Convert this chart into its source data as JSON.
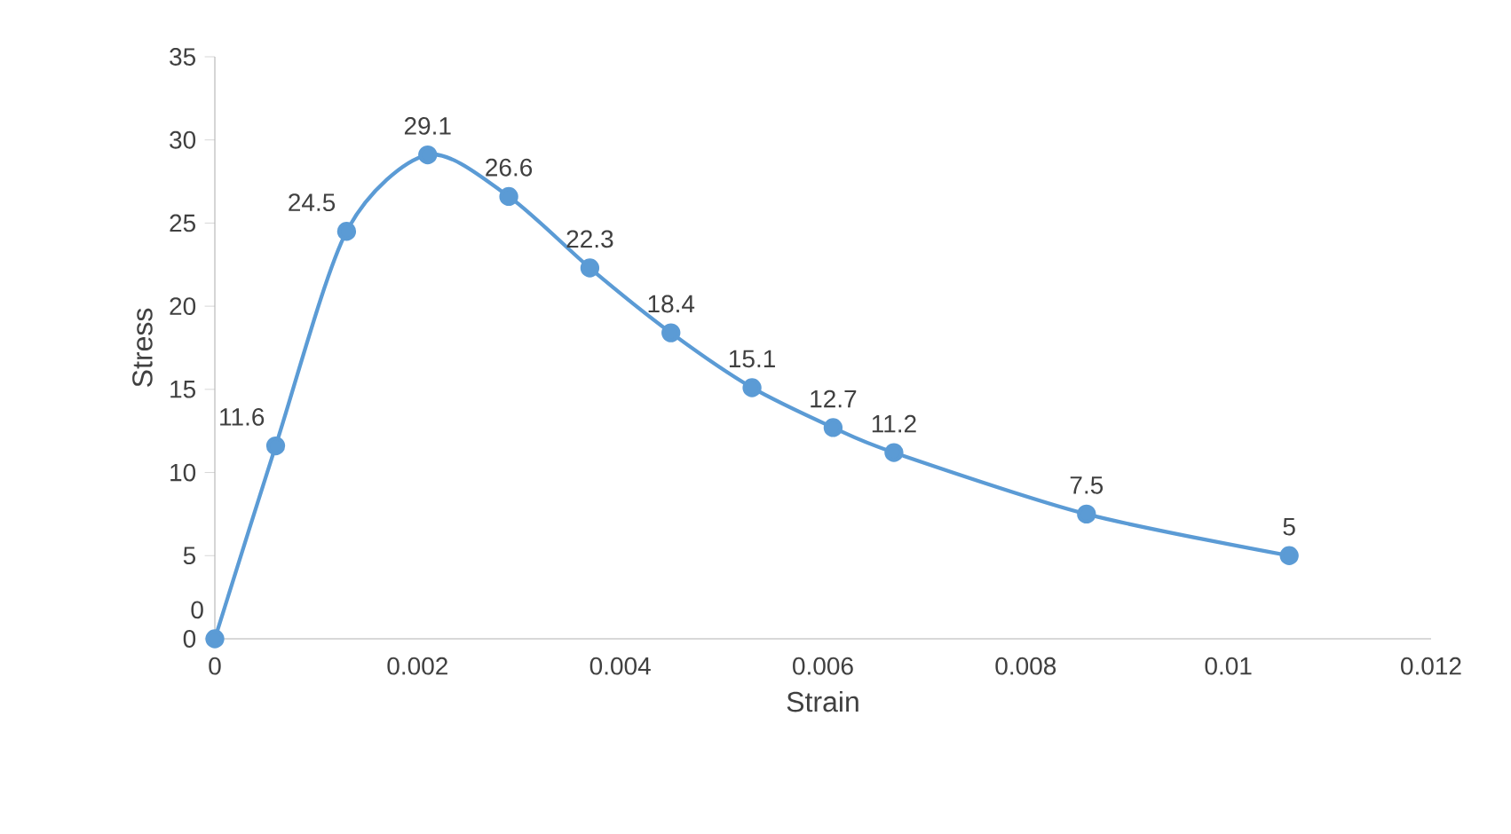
{
  "chart_data": {
    "type": "line",
    "xlabel": "Strain",
    "ylabel": "Stress",
    "x": [
      0,
      0.0006,
      0.0013,
      0.0021,
      0.0029,
      0.0037,
      0.0045,
      0.0053,
      0.0061,
      0.0067,
      0.0086,
      0.0106
    ],
    "series": [
      {
        "color": "#5b9bd5",
        "values": [
          0,
          11.6,
          24.5,
          29.1,
          26.6,
          22.3,
          18.4,
          15.1,
          12.7,
          11.2,
          7.5,
          5
        ]
      }
    ],
    "xlim": [
      0,
      0.012
    ],
    "xticks": [
      {
        "value": 0,
        "label": "0"
      },
      {
        "value": 0.002,
        "label": "0.002"
      },
      {
        "value": 0.004,
        "label": "0.004"
      },
      {
        "value": 0.006,
        "label": "0.006"
      },
      {
        "value": 0.008,
        "label": "0.008"
      },
      {
        "value": 0.01,
        "label": "0.01"
      },
      {
        "value": 0.012,
        "label": "0.012"
      }
    ],
    "ylim": [
      0,
      35
    ],
    "yticks": [
      0,
      5,
      10,
      15,
      20,
      25,
      30,
      35
    ],
    "data_labels": true,
    "grid": false,
    "marker": "circle",
    "line_style": "solid"
  }
}
